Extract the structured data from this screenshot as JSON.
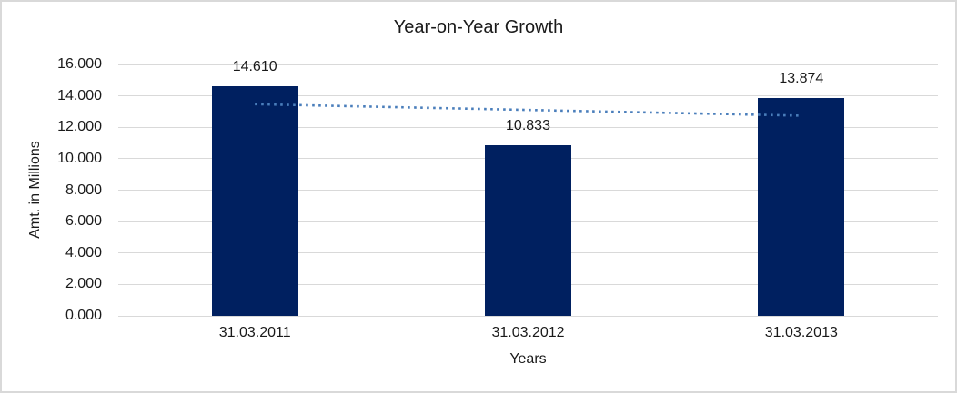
{
  "chart_data": {
    "type": "bar",
    "title": "Year-on-Year Growth",
    "xlabel": "Years",
    "ylabel": "Amt. in Millions",
    "categories": [
      "31.03.2011",
      "31.03.2012",
      "31.03.2013"
    ],
    "values": [
      14.61,
      10.833,
      13.874
    ],
    "data_labels": [
      "14.610",
      "10.833",
      "13.874"
    ],
    "ylim": [
      0,
      16
    ],
    "ytick_step": 2,
    "ytick_labels": [
      "0.000",
      "2.000",
      "4.000",
      "6.000",
      "8.000",
      "10.000",
      "12.000",
      "14.000",
      "16.000"
    ],
    "grid": true,
    "legend": "none",
    "trendline": {
      "type": "linear",
      "style": "dotted",
      "start_value": 13.47,
      "end_value": 12.74,
      "color": "#4A7EBB"
    },
    "colors": {
      "bar": "#002060",
      "gridline": "#D9D9D9",
      "text": "#1A1A1A",
      "chart_border": "#D9D9D9",
      "background": "#FFFFFF"
    }
  }
}
